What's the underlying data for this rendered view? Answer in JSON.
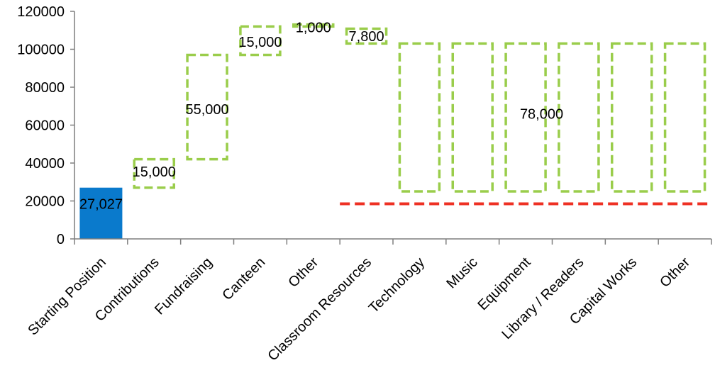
{
  "chart_data": {
    "type": "bar",
    "subtype": "waterfall",
    "title": "",
    "xlabel": "",
    "ylabel": "",
    "ylim": [
      0,
      120000
    ],
    "yticks": [
      "0",
      "20000",
      "40000",
      "60000",
      "80000",
      "100000",
      "120000"
    ],
    "grid": false,
    "categories": [
      "Starting Position",
      "Contributions",
      "Fundraising",
      "Canteen",
      "Other",
      "Classroom Resources",
      "Technology",
      "Music",
      "Equipment",
      "Library / Readers",
      "Capital Works",
      "Other"
    ],
    "bars": [
      {
        "low": 0,
        "high": 27027,
        "style": "solid"
      },
      {
        "low": 27027,
        "high": 42027,
        "style": "dashed"
      },
      {
        "low": 42027,
        "high": 97027,
        "style": "dashed"
      },
      {
        "low": 97027,
        "high": 112027,
        "style": "dashed"
      },
      {
        "low": 112027,
        "high": 113027,
        "style": "dashed"
      },
      {
        "low": 103027,
        "high": 110827,
        "style": "dashed"
      },
      {
        "low": 25027,
        "high": 103027,
        "style": "dashed"
      },
      {
        "low": 25027,
        "high": 103027,
        "style": "dashed"
      },
      {
        "low": 25027,
        "high": 103027,
        "style": "dashed"
      },
      {
        "low": 25027,
        "high": 103027,
        "style": "dashed"
      },
      {
        "low": 25027,
        "high": 103027,
        "style": "dashed"
      },
      {
        "low": 25027,
        "high": 103027,
        "style": "dashed"
      }
    ],
    "data_labels": [
      {
        "category_index": 0,
        "text": "27,027",
        "y": 18500
      },
      {
        "category_index": 1,
        "text": "15,000",
        "y": 35500
      },
      {
        "category_index": 2,
        "text": "55,000",
        "y": 68500
      },
      {
        "category_index": 3,
        "text": "15,000",
        "y": 104000
      },
      {
        "category_index": 4,
        "text": "1,000",
        "y": 111500
      },
      {
        "category_index": 5,
        "text": "7,800",
        "y": 107000
      },
      {
        "category_index": 8.3,
        "text": "78,000",
        "y": 66000
      }
    ],
    "reference_line": {
      "y": 18500,
      "from_category_boundary": 5
    },
    "colors": {
      "solid_bar": "#0A7ACC",
      "dashed_bar": "#9ACD4B",
      "reference_line": "#EE3124",
      "axis": "#7F7F7F"
    }
  }
}
